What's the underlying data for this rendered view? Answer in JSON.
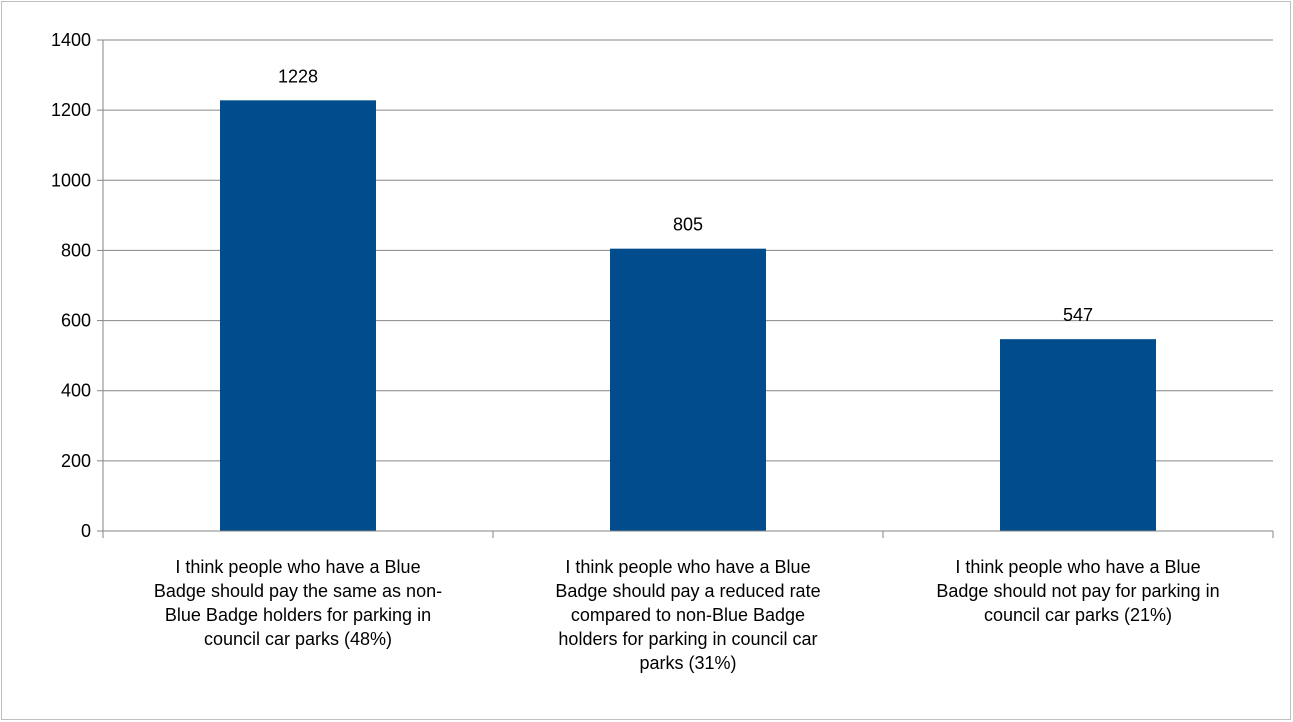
{
  "chart_data": {
    "type": "bar",
    "categories": [
      "I think people who have a Blue Badge should pay the same as non-Blue Badge holders for parking in council car parks (48%)",
      "I think people who have a Blue Badge should pay a reduced rate compared to non-Blue Badge holders for parking in council car parks (31%)",
      "I think people who have a Blue Badge should not pay for parking in council car parks (21%)"
    ],
    "category_lines": [
      [
        "I think people who have a Blue",
        "Badge should pay the same as non-",
        "Blue Badge holders for parking in",
        "council car parks (48%)"
      ],
      [
        "I think people who have a Blue",
        "Badge should pay a reduced rate",
        "compared to non-Blue Badge",
        "holders for parking in council car",
        "parks (31%)"
      ],
      [
        "I think people who have a Blue",
        "Badge should not pay for parking in",
        "council car parks (21%)"
      ]
    ],
    "values": [
      1228,
      805,
      547
    ],
    "data_labels": [
      "1228",
      "805",
      "547"
    ],
    "ylim": [
      0,
      1400
    ],
    "yticks": [
      0,
      200,
      400,
      600,
      800,
      1000,
      1200,
      1400
    ],
    "ytick_labels": [
      "0",
      "200",
      "400",
      "600",
      "800",
      "1000",
      "1200",
      "1400"
    ],
    "title": "",
    "xlabel": "",
    "ylabel": "",
    "grid": true,
    "legend": "none",
    "bar_color": "#004C8C",
    "grid_color": "#868686"
  }
}
